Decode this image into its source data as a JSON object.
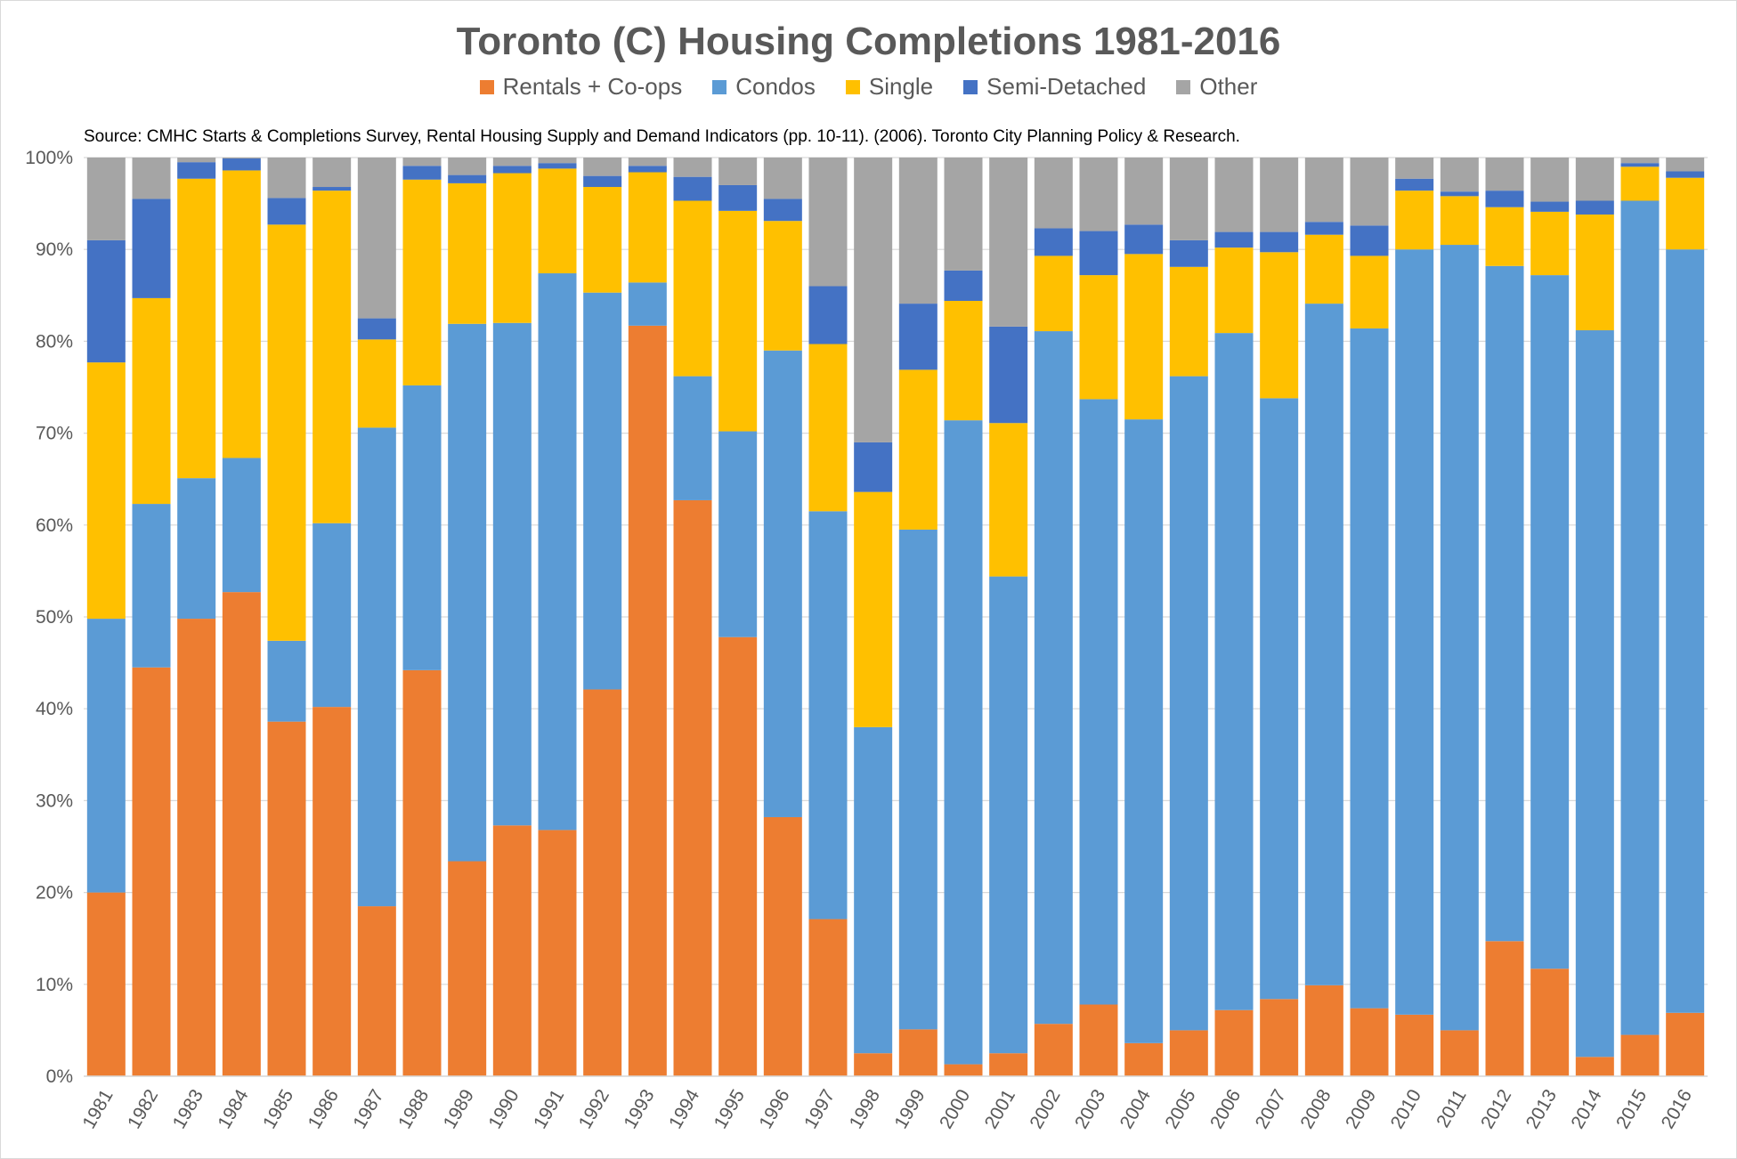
{
  "title": "Toronto (C) Housing Completions 1981-2016",
  "source": "Source: CMHC Starts & Completions Survey, Rental Housing Supply and Demand Indicators (pp. 10-11). (2006). Toronto City Planning Policy & Research.",
  "legend": [
    {
      "name": "Rentals + Co-ops",
      "color": "#ED7D31"
    },
    {
      "name": "Condos",
      "color": "#5B9BD5"
    },
    {
      "name": "Single",
      "color": "#FFC000"
    },
    {
      "name": "Semi-Detached",
      "color": "#4472C4"
    },
    {
      "name": "Other",
      "color": "#A5A5A5"
    }
  ],
  "chart_data": {
    "type": "bar",
    "stacked": true,
    "percent_stacked": true,
    "title": "Toronto (C) Housing Completions 1981-2016",
    "xlabel": "",
    "ylabel": "",
    "ylim": [
      0,
      100
    ],
    "y_ticks": [
      "0%",
      "10%",
      "20%",
      "30%",
      "40%",
      "50%",
      "60%",
      "70%",
      "80%",
      "90%",
      "100%"
    ],
    "grid": true,
    "legend_position": "top",
    "categories": [
      "1981",
      "1982",
      "1983",
      "1984",
      "1985",
      "1986",
      "1987",
      "1988",
      "1989",
      "1990",
      "1991",
      "1992",
      "1993",
      "1994",
      "1995",
      "1996",
      "1997",
      "1998",
      "1999",
      "2000",
      "2001",
      "2002",
      "2003",
      "2004",
      "2005",
      "2006",
      "2007",
      "2008",
      "2009",
      "2010",
      "2011",
      "2012",
      "2013",
      "2014",
      "2015",
      "2016"
    ],
    "series": [
      {
        "name": "Rentals + Co-ops",
        "color": "#ED7D31",
        "values": [
          20,
          44.5,
          49.8,
          52.7,
          38.6,
          40.2,
          18.5,
          44.2,
          23.4,
          27.3,
          26.8,
          42.1,
          81.7,
          62.7,
          47.8,
          28.2,
          17.1,
          2.5,
          5.1,
          1.3,
          2.5,
          5.7,
          7.8,
          3.6,
          5.0,
          7.2,
          8.4,
          9.9,
          7.4,
          6.7,
          5.0,
          14.7,
          11.7,
          2.1,
          4.5,
          6.9
        ]
      },
      {
        "name": "Condos",
        "color": "#5B9BD5",
        "values": [
          29.8,
          17.8,
          15.3,
          14.6,
          8.8,
          20.0,
          52.1,
          31.0,
          58.5,
          54.7,
          60.6,
          43.2,
          4.7,
          13.5,
          22.4,
          50.8,
          44.4,
          35.5,
          54.4,
          70.1,
          51.9,
          75.4,
          65.9,
          67.9,
          71.2,
          73.7,
          65.4,
          74.2,
          74.0,
          83.3,
          85.5,
          73.5,
          75.5,
          79.1,
          90.8,
          83.1
        ]
      },
      {
        "name": "Single",
        "color": "#FFC000",
        "values": [
          27.9,
          22.4,
          32.6,
          31.3,
          45.3,
          36.2,
          9.6,
          22.4,
          15.3,
          16.3,
          11.4,
          11.5,
          12.0,
          19.1,
          24.0,
          14.1,
          18.2,
          25.6,
          17.4,
          13.0,
          16.7,
          8.2,
          13.5,
          18.0,
          11.9,
          9.3,
          15.9,
          7.5,
          7.9,
          6.4,
          5.3,
          6.4,
          6.9,
          12.6,
          3.7,
          7.8
        ]
      },
      {
        "name": "Semi-Detached",
        "color": "#4472C4",
        "values": [
          13.3,
          10.8,
          1.8,
          1.3,
          2.9,
          0.4,
          2.3,
          1.5,
          0.9,
          0.8,
          0.6,
          1.2,
          0.7,
          2.6,
          2.8,
          2.4,
          6.3,
          5.4,
          7.2,
          3.3,
          10.5,
          3.0,
          4.8,
          3.2,
          2.9,
          1.7,
          2.2,
          1.4,
          3.3,
          1.3,
          0.5,
          1.8,
          1.1,
          1.5,
          0.4,
          0.7
        ]
      },
      {
        "name": "Other",
        "color": "#A5A5A5",
        "values": [
          9.0,
          4.5,
          0.5,
          0.1,
          4.4,
          3.2,
          17.5,
          0.9,
          1.9,
          0.9,
          0.6,
          2.0,
          0.9,
          2.1,
          3.0,
          4.5,
          14.0,
          31.0,
          15.9,
          12.3,
          18.4,
          7.7,
          8.0,
          7.3,
          9.0,
          8.1,
          8.1,
          7.0,
          7.4,
          2.3,
          3.7,
          3.6,
          4.8,
          4.7,
          0.6,
          1.5
        ]
      }
    ]
  }
}
